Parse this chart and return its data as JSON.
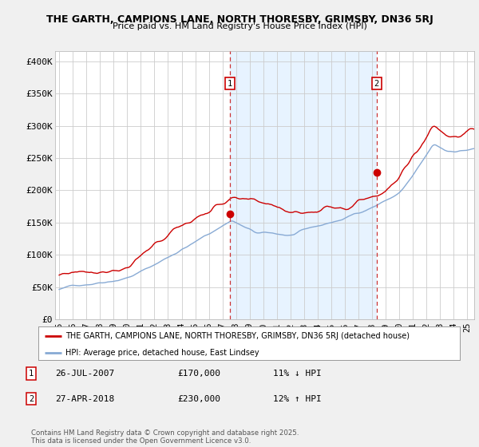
{
  "title1": "THE GARTH, CAMPIONS LANE, NORTH THORESBY, GRIMSBY, DN36 5RJ",
  "title2": "Price paid vs. HM Land Registry's House Price Index (HPI)",
  "ylabel_ticks": [
    "£0",
    "£50K",
    "£100K",
    "£150K",
    "£200K",
    "£250K",
    "£300K",
    "£350K",
    "£400K"
  ],
  "ytick_vals": [
    0,
    50000,
    100000,
    150000,
    200000,
    250000,
    300000,
    350000,
    400000
  ],
  "ylim": [
    0,
    415000
  ],
  "xlim_start": 1994.7,
  "xlim_end": 2025.5,
  "marker1_x": 2007.55,
  "marker1_y": 170000,
  "marker1_red_dot_y": 163000,
  "marker2_x": 2018.33,
  "marker2_y": 230000,
  "marker2_red_dot_y": 228000,
  "marker1_label": "1",
  "marker2_label": "2",
  "red_color": "#cc0000",
  "blue_color": "#88aad4",
  "shade_color": "#ddeeff",
  "dashed_color": "#cc3333",
  "legend_line1": "THE GARTH, CAMPIONS LANE, NORTH THORESBY, GRIMSBY, DN36 5RJ (detached house)",
  "legend_line2": "HPI: Average price, detached house, East Lindsey",
  "table_row1": [
    "1",
    "26-JUL-2007",
    "£170,000",
    "11% ↓ HPI"
  ],
  "table_row2": [
    "2",
    "27-APR-2018",
    "£230,000",
    "12% ↑ HPI"
  ],
  "footer": "Contains HM Land Registry data © Crown copyright and database right 2025.\nThis data is licensed under the Open Government Licence v3.0.",
  "background_color": "#f0f0f0",
  "plot_bg_color": "#ffffff",
  "grid_color": "#cccccc"
}
